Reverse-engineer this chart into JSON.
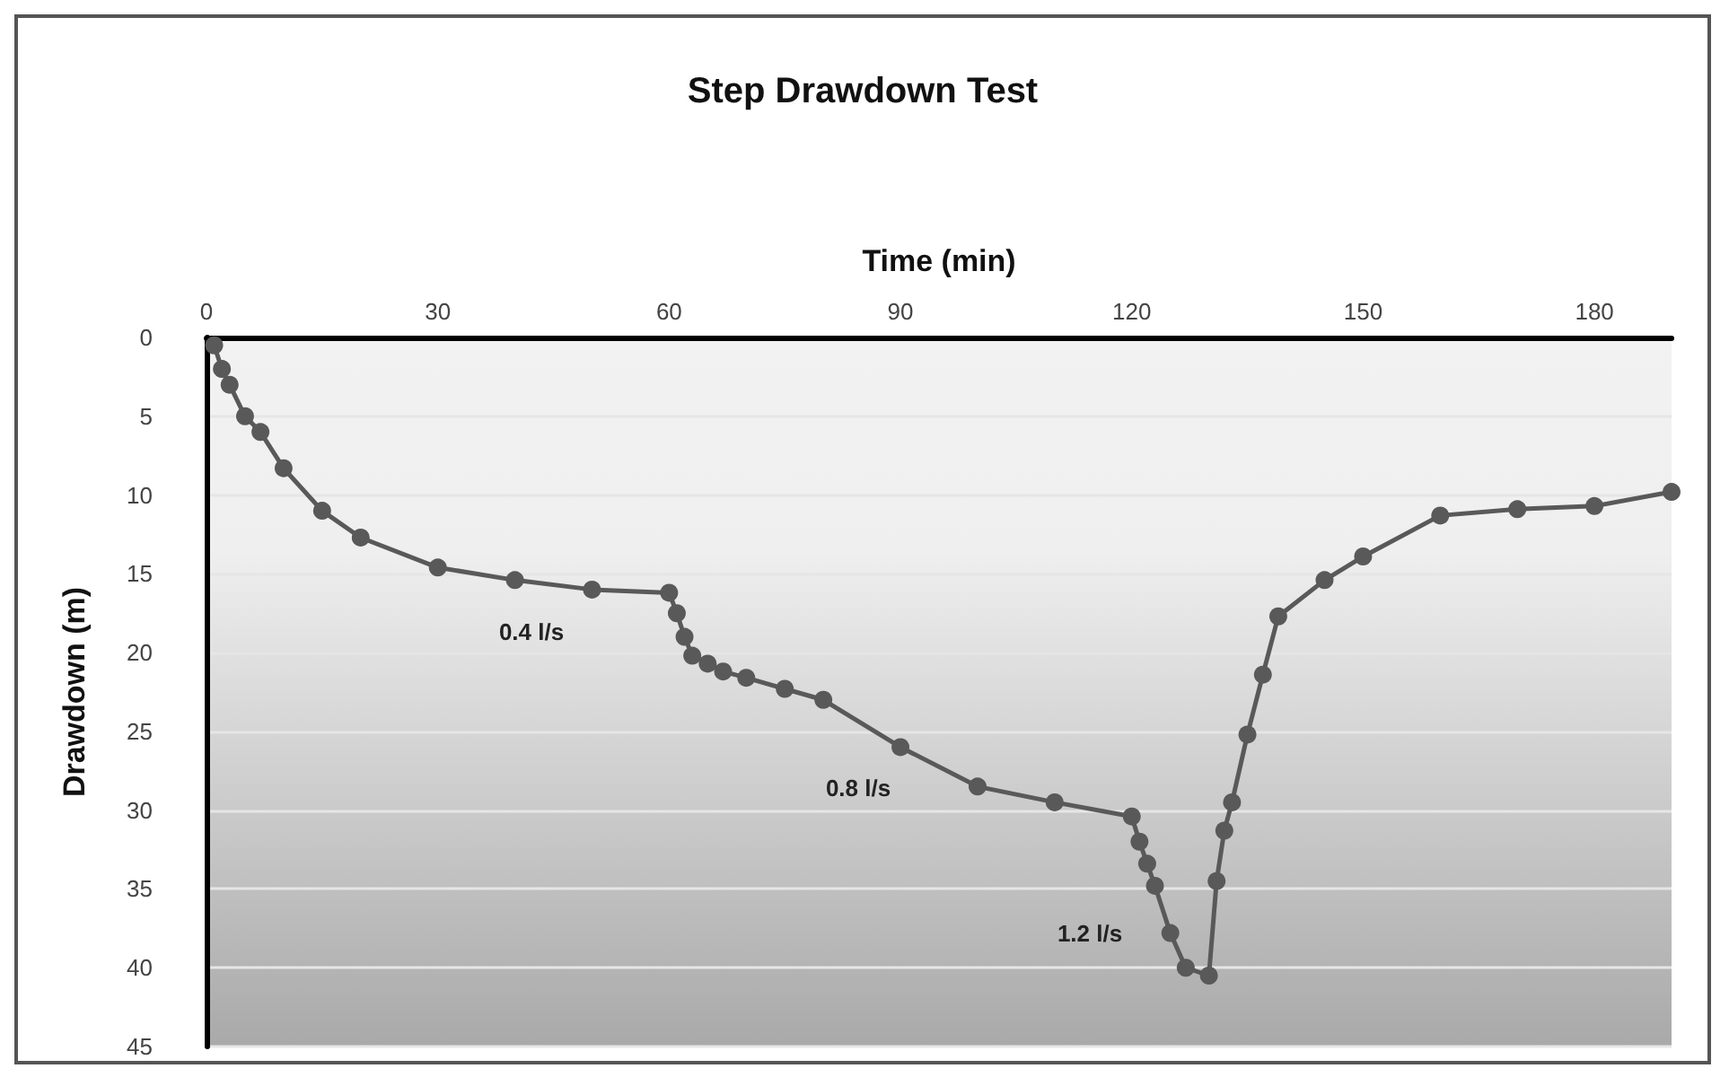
{
  "chart_data": {
    "type": "line",
    "title": "Step Drawdown Test",
    "xlabel": "Time (min)",
    "ylabel": "Drawdown (m)",
    "series": [
      {
        "color": "#595959",
        "x": [
          1,
          2,
          3,
          5,
          7,
          10,
          15,
          20,
          30,
          40,
          50,
          60,
          61,
          62,
          63,
          65,
          67,
          70,
          75,
          80,
          90,
          100,
          110,
          120,
          121,
          122,
          123,
          125,
          127,
          130,
          131,
          132,
          133,
          135,
          137,
          139,
          145,
          150,
          160,
          170,
          180,
          190
        ],
        "values": [
          0.5,
          2,
          3,
          5,
          6,
          8.3,
          11,
          12.7,
          14.6,
          15.4,
          16,
          16.2,
          17.5,
          19,
          20.2,
          20.7,
          21.2,
          21.6,
          22.3,
          23,
          26,
          28.5,
          29.5,
          30.4,
          32,
          33.4,
          34.8,
          37.8,
          40,
          40.5,
          34.5,
          31.3,
          29.5,
          25.2,
          21.4,
          17.7,
          15.4,
          13.9,
          11.3,
          10.9,
          10.7,
          9.8
        ]
      }
    ],
    "xlim": [
      0,
      190
    ],
    "xticks": [
      0,
      30,
      60,
      90,
      120,
      150,
      180
    ],
    "ylim": [
      45,
      0
    ],
    "yticks": [
      0,
      5,
      10,
      15,
      20,
      25,
      30,
      35,
      40,
      45
    ],
    "grid": "y",
    "marker": "circle",
    "line_style": "solid",
    "annotations": [
      "0.4 l/s",
      "0.8 l/s",
      "1.2 l/s"
    ]
  }
}
